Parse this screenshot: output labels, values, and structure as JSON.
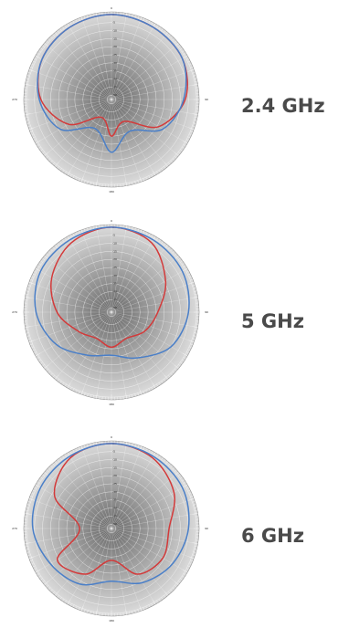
{
  "charts": [
    {
      "band": "2.4 GHz",
      "chart_data": {
        "type": "polar",
        "angle_labels": [
          "0",
          "90",
          "180",
          "270"
        ],
        "ring_labels": [
          "0",
          "-5",
          "-10",
          "-15",
          "-20",
          "-25",
          "-30",
          "-35",
          "-40",
          "-45",
          "-50"
        ],
        "r_range": [
          -50,
          0
        ],
        "grid": true,
        "angles": [
          0,
          30,
          60,
          90,
          120,
          150,
          180,
          210,
          240,
          270,
          300,
          330
        ],
        "series": [
          {
            "color": "#d33a3a",
            "values": [
              0,
              -1,
              -2,
              -7,
              -19,
              -37,
              -30,
              -40,
              -22,
              -9,
              -3,
              -1
            ]
          },
          {
            "color": "#4a7fc8",
            "values": [
              0,
              -1,
              -2,
              -8,
              -16,
              -30,
              -20,
              -32,
              -16,
              -8,
              -3,
              -1
            ]
          }
        ]
      }
    },
    {
      "band": "5 GHz",
      "chart_data": {
        "type": "polar",
        "angle_labels": [
          "0",
          "90",
          "180",
          "270"
        ],
        "ring_labels": [
          "0",
          "-5",
          "-10",
          "-15",
          "-20",
          "-25",
          "-30",
          "-35",
          "-40",
          "-45",
          "-50"
        ],
        "r_range": [
          -50,
          0
        ],
        "grid": true,
        "angles": [
          0,
          30,
          60,
          90,
          120,
          150,
          180,
          210,
          240,
          270,
          300,
          330
        ],
        "series": [
          {
            "color": "#d33a3a",
            "values": [
              0,
              -3,
              -14,
              -24,
              -29,
              -34,
              -31,
              -34,
              -29,
              -19,
              -10,
              -3
            ]
          },
          {
            "color": "#4a7fc8",
            "values": [
              0,
              -1,
              -2,
              -5,
              -10,
              -20,
              -26,
              -22,
              -13,
              -6,
              -2,
              -1
            ]
          }
        ]
      }
    },
    {
      "band": "6 GHz",
      "chart_data": {
        "type": "polar",
        "angle_labels": [
          "0",
          "90",
          "180",
          "270"
        ],
        "ring_labels": [
          "0",
          "-5",
          "-10",
          "-15",
          "-20",
          "-25",
          "-30",
          "-35",
          "-40",
          "-45",
          "-50"
        ],
        "r_range": [
          -50,
          0
        ],
        "grid": true,
        "angles": [
          0,
          30,
          60,
          90,
          120,
          150,
          180,
          210,
          240,
          270,
          300,
          330
        ],
        "series": [
          {
            "color": "#d33a3a",
            "values": [
              0,
              -2,
              -8,
              -17,
              -16,
              -20,
              -33,
              -20,
              -14,
              -33,
              -12,
              -2
            ]
          },
          {
            "color": "#4a7fc8",
            "values": [
              0,
              -1,
              -2,
              -5,
              -9,
              -14,
              -20,
              -13,
              -9,
              -4,
              -2,
              -1
            ]
          }
        ]
      }
    }
  ]
}
